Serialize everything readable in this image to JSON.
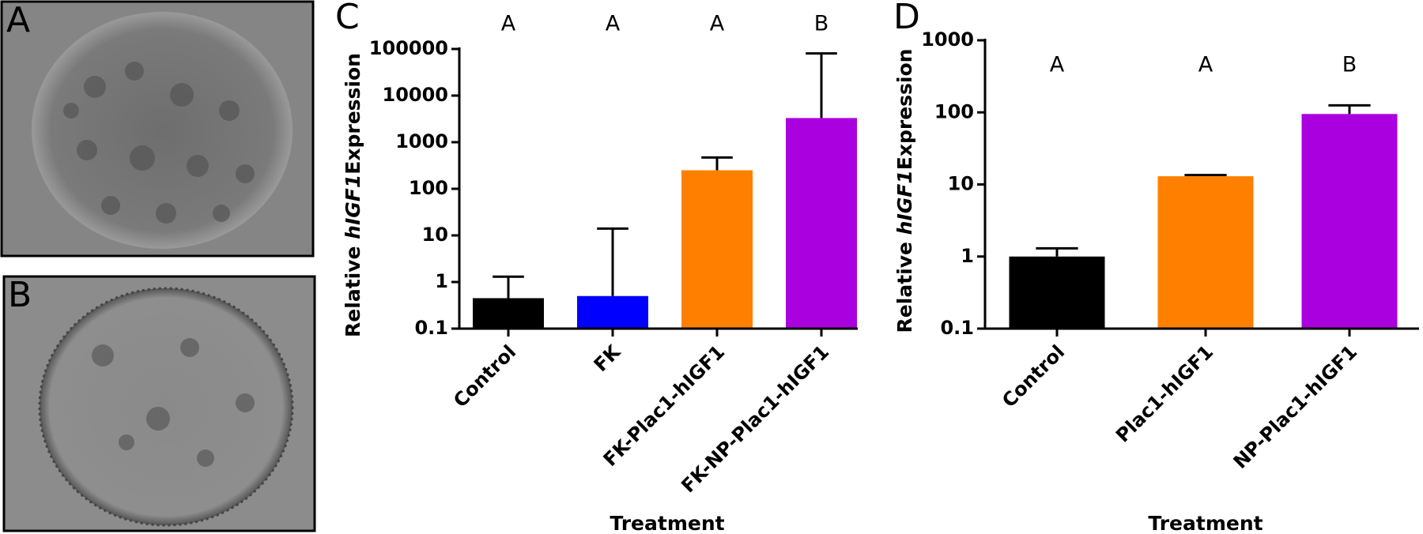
{
  "panel_labels": [
    "A",
    "B",
    "C",
    "D"
  ],
  "chart_data": [
    {
      "type": "bar",
      "log_y": true,
      "ylabel": [
        "Relative ",
        "hIGF1",
        "Expression"
      ],
      "xlabel": "Treatment",
      "categories": [
        "Control",
        "FK",
        "FK-Plac1-hIGF1",
        "FK-NP-Plac1-hIGF1"
      ],
      "values": [
        0.45,
        0.5,
        250,
        3300
      ],
      "errors": [
        0.85,
        13.5,
        220,
        77000
      ],
      "colors": [
        "#000000",
        "#0000ff",
        "#ff8000",
        "#aa00e0"
      ],
      "annotations": [
        "A",
        "A",
        "A",
        "B"
      ],
      "ylim": [
        0.1,
        100000
      ],
      "yticks": [
        0.1,
        1,
        10,
        100,
        1000,
        10000,
        100000
      ]
    },
    {
      "type": "bar",
      "log_y": true,
      "ylabel": [
        "Relative ",
        "hIGF1",
        "Expression"
      ],
      "xlabel": "Treatment",
      "categories": [
        "Control",
        "Plac1-hIGF1",
        "NP-Plac1-hIGF1"
      ],
      "values": [
        1.0,
        13,
        95
      ],
      "errors": [
        0.3,
        0.5,
        30
      ],
      "colors": [
        "#000000",
        "#ff8000",
        "#aa00e0"
      ],
      "annotations": [
        "A",
        "A",
        "B"
      ],
      "ylim": [
        0.1,
        1000
      ],
      "yticks": [
        0.1,
        1,
        10,
        100,
        1000
      ]
    }
  ]
}
